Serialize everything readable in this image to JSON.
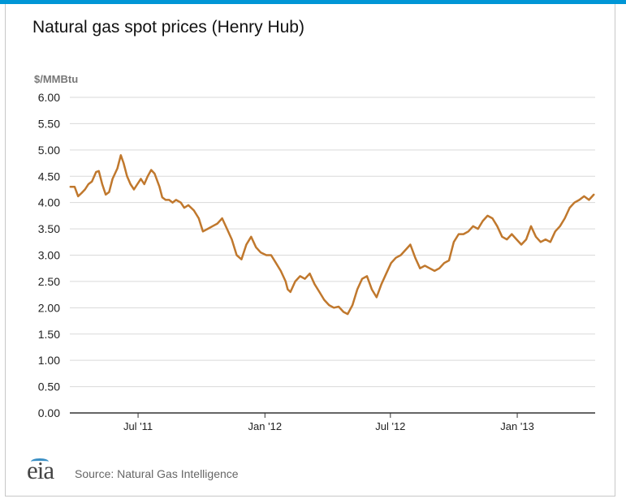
{
  "title": "Natural gas spot prices (Henry Hub)",
  "source": "Source: Natural Gas Intelligence",
  "logo_text": "eia",
  "colors": {
    "top_bar": "#0096d6",
    "series": "#c0782d",
    "grid": "#d9d9d9",
    "axis": "#333333"
  },
  "chart_data": {
    "type": "line",
    "ylabel": "$/MMBtu",
    "ylim": [
      0,
      6
    ],
    "yticks": [
      "0.00",
      "0.50",
      "1.00",
      "1.50",
      "2.00",
      "2.50",
      "3.00",
      "3.50",
      "4.00",
      "4.50",
      "5.00",
      "5.50",
      "6.00"
    ],
    "xlim": [
      "2011-03-24",
      "2013-04-24"
    ],
    "xticks": [
      {
        "date": "2011-07-01",
        "label": "Jul '11"
      },
      {
        "date": "2012-01-01",
        "label": "Jan '12"
      },
      {
        "date": "2012-07-01",
        "label": "Jul '12"
      },
      {
        "date": "2013-01-01",
        "label": "Jan '13"
      }
    ],
    "grid": true,
    "series": [
      {
        "points": [
          [
            "2011-03-25",
            4.3
          ],
          [
            "2011-03-31",
            4.3
          ],
          [
            "2011-04-05",
            4.12
          ],
          [
            "2011-04-10",
            4.18
          ],
          [
            "2011-04-15",
            4.25
          ],
          [
            "2011-04-20",
            4.35
          ],
          [
            "2011-04-25",
            4.4
          ],
          [
            "2011-05-01",
            4.58
          ],
          [
            "2011-05-05",
            4.6
          ],
          [
            "2011-05-10",
            4.35
          ],
          [
            "2011-05-15",
            4.15
          ],
          [
            "2011-05-20",
            4.2
          ],
          [
            "2011-05-25",
            4.45
          ],
          [
            "2011-06-01",
            4.65
          ],
          [
            "2011-06-06",
            4.9
          ],
          [
            "2011-06-10",
            4.75
          ],
          [
            "2011-06-15",
            4.5
          ],
          [
            "2011-06-20",
            4.35
          ],
          [
            "2011-06-25",
            4.25
          ],
          [
            "2011-06-30",
            4.35
          ],
          [
            "2011-07-05",
            4.45
          ],
          [
            "2011-07-10",
            4.35
          ],
          [
            "2011-07-15",
            4.5
          ],
          [
            "2011-07-20",
            4.62
          ],
          [
            "2011-07-25",
            4.55
          ],
          [
            "2011-08-01",
            4.3
          ],
          [
            "2011-08-05",
            4.1
          ],
          [
            "2011-08-10",
            4.05
          ],
          [
            "2011-08-15",
            4.05
          ],
          [
            "2011-08-20",
            4.0
          ],
          [
            "2011-08-25",
            4.05
          ],
          [
            "2011-09-01",
            4.0
          ],
          [
            "2011-09-06",
            3.9
          ],
          [
            "2011-09-12",
            3.95
          ],
          [
            "2011-09-20",
            3.85
          ],
          [
            "2011-09-27",
            3.7
          ],
          [
            "2011-10-03",
            3.45
          ],
          [
            "2011-10-10",
            3.5
          ],
          [
            "2011-10-17",
            3.55
          ],
          [
            "2011-10-24",
            3.6
          ],
          [
            "2011-10-31",
            3.7
          ],
          [
            "2011-11-07",
            3.5
          ],
          [
            "2011-11-14",
            3.3
          ],
          [
            "2011-11-21",
            3.0
          ],
          [
            "2011-11-28",
            2.92
          ],
          [
            "2011-12-05",
            3.2
          ],
          [
            "2011-12-12",
            3.35
          ],
          [
            "2011-12-19",
            3.15
          ],
          [
            "2011-12-26",
            3.05
          ],
          [
            "2012-01-03",
            3.0
          ],
          [
            "2012-01-10",
            3.0
          ],
          [
            "2012-01-17",
            2.85
          ],
          [
            "2012-01-24",
            2.7
          ],
          [
            "2012-01-31",
            2.5
          ],
          [
            "2012-02-03",
            2.35
          ],
          [
            "2012-02-07",
            2.3
          ],
          [
            "2012-02-14",
            2.5
          ],
          [
            "2012-02-21",
            2.6
          ],
          [
            "2012-02-28",
            2.55
          ],
          [
            "2012-03-06",
            2.65
          ],
          [
            "2012-03-13",
            2.45
          ],
          [
            "2012-03-20",
            2.3
          ],
          [
            "2012-03-27",
            2.15
          ],
          [
            "2012-04-03",
            2.05
          ],
          [
            "2012-04-10",
            2.0
          ],
          [
            "2012-04-17",
            2.02
          ],
          [
            "2012-04-24",
            1.92
          ],
          [
            "2012-04-30",
            1.88
          ],
          [
            "2012-05-07",
            2.05
          ],
          [
            "2012-05-14",
            2.35
          ],
          [
            "2012-05-21",
            2.55
          ],
          [
            "2012-05-28",
            2.6
          ],
          [
            "2012-06-04",
            2.35
          ],
          [
            "2012-06-11",
            2.2
          ],
          [
            "2012-06-18",
            2.45
          ],
          [
            "2012-06-25",
            2.65
          ],
          [
            "2012-07-02",
            2.85
          ],
          [
            "2012-07-09",
            2.95
          ],
          [
            "2012-07-16",
            3.0
          ],
          [
            "2012-07-23",
            3.1
          ],
          [
            "2012-07-30",
            3.2
          ],
          [
            "2012-08-06",
            2.95
          ],
          [
            "2012-08-13",
            2.75
          ],
          [
            "2012-08-20",
            2.8
          ],
          [
            "2012-08-27",
            2.75
          ],
          [
            "2012-09-03",
            2.7
          ],
          [
            "2012-09-10",
            2.75
          ],
          [
            "2012-09-17",
            2.85
          ],
          [
            "2012-09-24",
            2.9
          ],
          [
            "2012-10-01",
            3.25
          ],
          [
            "2012-10-08",
            3.4
          ],
          [
            "2012-10-15",
            3.4
          ],
          [
            "2012-10-22",
            3.45
          ],
          [
            "2012-10-29",
            3.55
          ],
          [
            "2012-11-05",
            3.5
          ],
          [
            "2012-11-12",
            3.65
          ],
          [
            "2012-11-19",
            3.75
          ],
          [
            "2012-11-26",
            3.7
          ],
          [
            "2012-12-03",
            3.55
          ],
          [
            "2012-12-10",
            3.35
          ],
          [
            "2012-12-17",
            3.3
          ],
          [
            "2012-12-24",
            3.4
          ],
          [
            "2012-12-31",
            3.3
          ],
          [
            "2013-01-07",
            3.2
          ],
          [
            "2013-01-14",
            3.3
          ],
          [
            "2013-01-21",
            3.55
          ],
          [
            "2013-01-28",
            3.35
          ],
          [
            "2013-02-04",
            3.25
          ],
          [
            "2013-02-11",
            3.3
          ],
          [
            "2013-02-18",
            3.25
          ],
          [
            "2013-02-25",
            3.45
          ],
          [
            "2013-03-04",
            3.55
          ],
          [
            "2013-03-11",
            3.7
          ],
          [
            "2013-03-18",
            3.9
          ],
          [
            "2013-03-25",
            4.0
          ],
          [
            "2013-04-01",
            4.05
          ],
          [
            "2013-04-08",
            4.12
          ],
          [
            "2013-04-15",
            4.05
          ],
          [
            "2013-04-22",
            4.15
          ]
        ]
      }
    ]
  }
}
